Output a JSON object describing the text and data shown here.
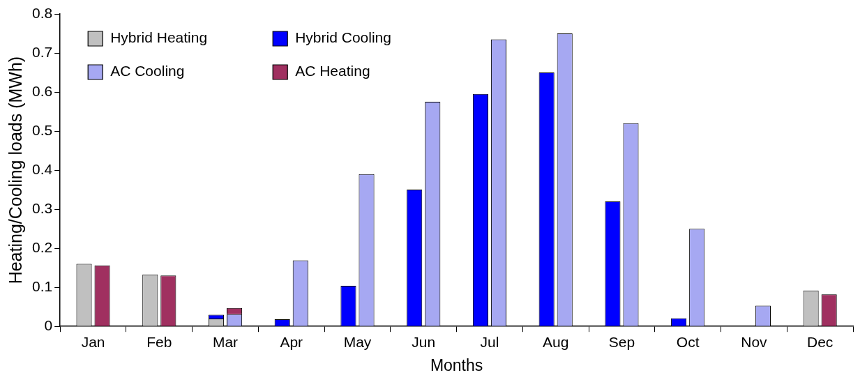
{
  "chart_data": {
    "type": "bar",
    "xlabel": "Months",
    "ylabel": "Heating/Cooling loads (MWh)",
    "categories": [
      "Jan",
      "Feb",
      "Mar",
      "Apr",
      "May",
      "Jun",
      "Jul",
      "Aug",
      "Sep",
      "Oct",
      "Nov",
      "Dec"
    ],
    "ylim": [
      0,
      0.8
    ],
    "yticks": [
      0,
      0.1,
      0.2,
      0.3,
      0.4,
      0.5,
      0.6,
      0.7,
      0.8
    ],
    "grid": false,
    "legend": "top left",
    "series": [
      {
        "name": "Hybrid Heating",
        "color": "#c0c0c0",
        "values": [
          0.16,
          0.133,
          0.02,
          null,
          null,
          null,
          null,
          null,
          null,
          null,
          null,
          0.092
        ]
      },
      {
        "name": "Hybrid Cooling",
        "color": "#0000ff",
        "values": [
          null,
          null,
          0.01,
          0.018,
          0.104,
          0.35,
          0.595,
          0.65,
          0.32,
          0.021,
          null,
          null
        ],
        "base": [
          null,
          null,
          0.02,
          0,
          0,
          0,
          0,
          0,
          0,
          0,
          null,
          null
        ]
      },
      {
        "name": "AC Cooling",
        "color": "#a6a8f2",
        "values": [
          null,
          null,
          0.031,
          0.169,
          0.39,
          0.575,
          0.735,
          0.75,
          0.52,
          0.25,
          0.053,
          null
        ]
      },
      {
        "name": "AC Heating",
        "color": "#a03060",
        "values": [
          0.156,
          0.13,
          0.016,
          null,
          null,
          null,
          null,
          null,
          null,
          null,
          null,
          0.082
        ],
        "base": [
          0,
          0,
          0.031,
          null,
          null,
          null,
          null,
          null,
          null,
          null,
          null,
          0
        ]
      }
    ]
  }
}
